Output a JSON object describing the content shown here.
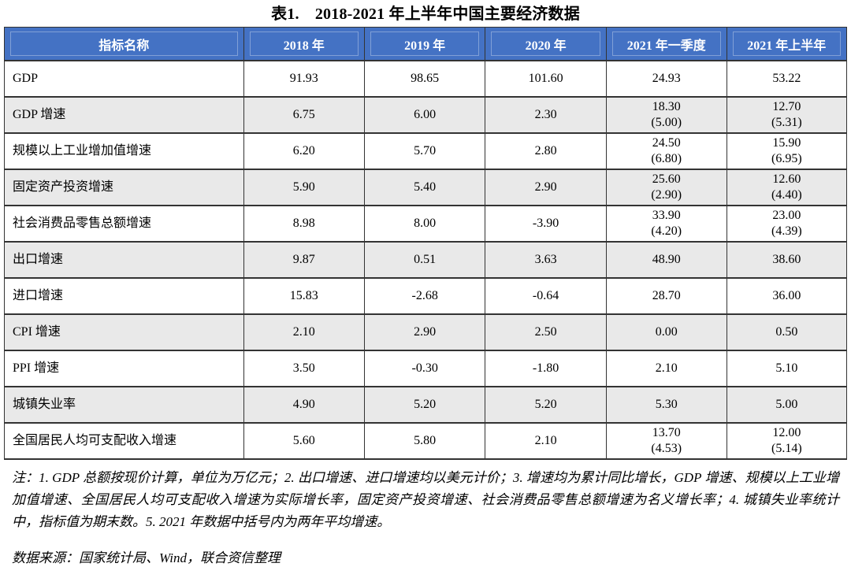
{
  "page": {
    "title": "表1.　2018-2021 年上半年中国主要经济数据"
  },
  "table": {
    "columns": [
      "指标名称",
      "2018 年",
      "2019 年",
      "2020 年",
      "2021 年一季度",
      "2021 年上半年"
    ],
    "rows": [
      {
        "label": "GDP",
        "values": [
          "91.93",
          "98.65",
          "101.60",
          "24.93",
          "53.22"
        ]
      },
      {
        "label": "GDP 增速",
        "values": [
          "6.75",
          "6.00",
          "2.30",
          "18.30\n(5.00)",
          "12.70\n(5.31)"
        ]
      },
      {
        "label": "规模以上工业增加值增速",
        "values": [
          "6.20",
          "5.70",
          "2.80",
          "24.50\n(6.80)",
          "15.90\n(6.95)"
        ]
      },
      {
        "label": "固定资产投资增速",
        "values": [
          "5.90",
          "5.40",
          "2.90",
          "25.60\n(2.90)",
          "12.60\n(4.40)"
        ]
      },
      {
        "label": "社会消费品零售总额增速",
        "values": [
          "8.98",
          "8.00",
          "-3.90",
          "33.90\n(4.20)",
          "23.00\n(4.39)"
        ]
      },
      {
        "label": "出口增速",
        "values": [
          "9.87",
          "0.51",
          "3.63",
          "48.90",
          "38.60"
        ]
      },
      {
        "label": "进口增速",
        "values": [
          "15.83",
          "-2.68",
          "-0.64",
          "28.70",
          "36.00"
        ]
      },
      {
        "label": "CPI 增速",
        "values": [
          "2.10",
          "2.90",
          "2.50",
          "0.00",
          "0.50"
        ]
      },
      {
        "label": "PPI 增速",
        "values": [
          "3.50",
          "-0.30",
          "-1.80",
          "2.10",
          "5.10"
        ]
      },
      {
        "label": "城镇失业率",
        "values": [
          "4.90",
          "5.20",
          "5.20",
          "5.30",
          "5.00"
        ]
      },
      {
        "label": "全国居民人均可支配收入增速",
        "values": [
          "5.60",
          "5.80",
          "2.10",
          "13.70\n(4.53)",
          "12.00\n(5.14)"
        ]
      }
    ],
    "column_widths": [
      "28.4%",
      "14.35%",
      "14.35%",
      "14.35%",
      "14.3%",
      "14.25%"
    ]
  },
  "notes": "注：1. GDP 总额按现价计算，单位为万亿元；2. 出口增速、进口增速均以美元计价；3. 增速均为累计同比增长，GDP 增速、规模以上工业增加值增速、全国居民人均可支配收入增速为实际增长率，固定资产投资增速、社会消费品零售总额增速为名义增长率；4. 城镇失业率统计中，指标值为期末数。5. 2021 年数据中括号内为两年平均增速。",
  "source": "数据来源：国家统计局、Wind，联合资信整理",
  "colors": {
    "header_bg": "#4472C4",
    "header_text": "#FFFFFF",
    "alt_row_bg": "#E9E9E9",
    "border": "#333333",
    "text": "#000000"
  }
}
